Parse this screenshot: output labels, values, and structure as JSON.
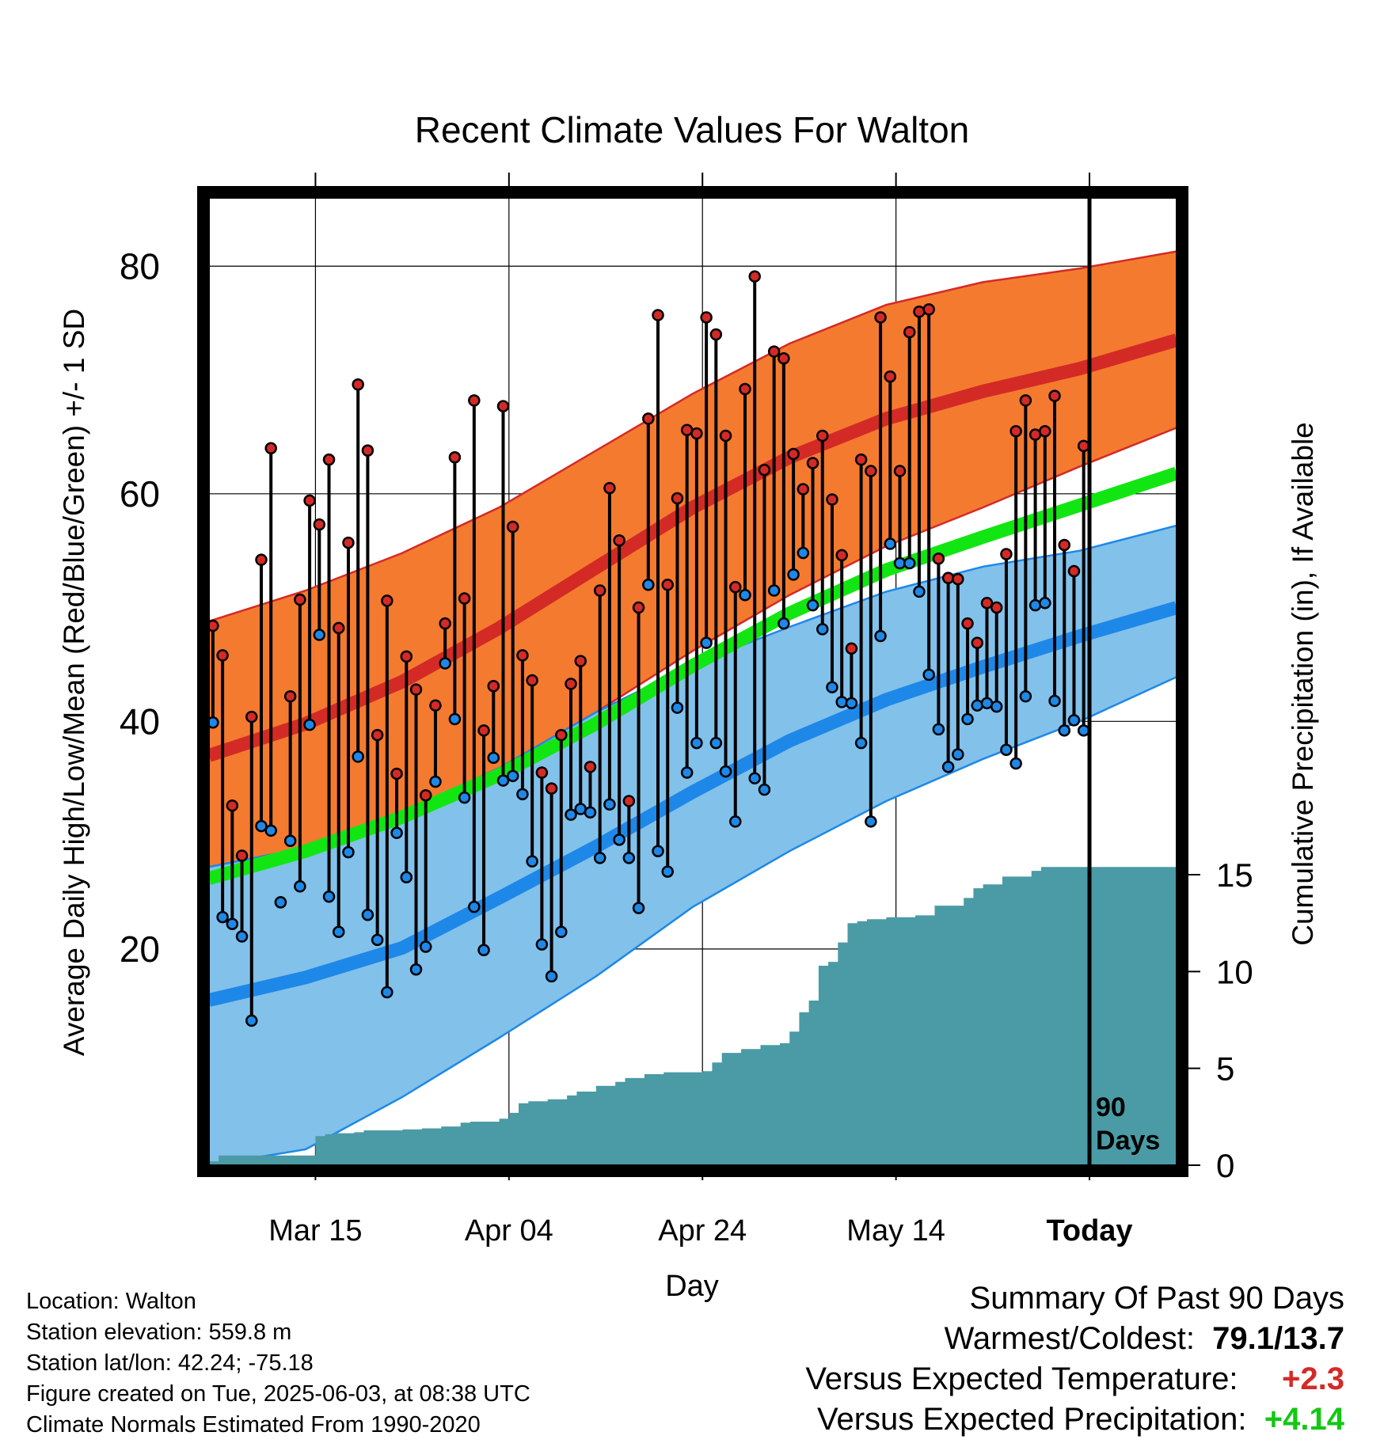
{
  "chart_data": {
    "type": "line",
    "title": "Recent Climate Values For Walton",
    "xlabel": "Day",
    "ylabel_left": "Average Daily High/Low/Mean (Red/Blue/Green) +/- 1 SD",
    "ylabel_right": "Cumulative Precipitation (in), If Available",
    "x_ticks": [
      {
        "day": 11,
        "label": "Mar 15"
      },
      {
        "day": 31,
        "label": "Apr 04"
      },
      {
        "day": 51,
        "label": "Apr 24"
      },
      {
        "day": 71,
        "label": "May 14"
      },
      {
        "day": 91,
        "label": "Today"
      }
    ],
    "xlim": [
      0,
      100
    ],
    "ylim": [
      1,
      86
    ],
    "y_ticks": [
      20,
      40,
      60,
      80
    ],
    "precip_ticks": [
      0,
      5,
      10,
      15
    ],
    "precip_lim": [
      0,
      15
    ],
    "today_day": 91,
    "today_label": [
      "90",
      "Days"
    ],
    "normals": {
      "days": [
        0,
        10,
        20,
        30,
        40,
        50,
        60,
        70,
        80,
        90,
        100
      ],
      "high_mean": [
        37,
        39.8,
        43.5,
        48.2,
        53.5,
        58.8,
        63.2,
        66.6,
        69,
        71,
        73.5
      ],
      "high_sd_upper": [
        48.8,
        51.5,
        54.8,
        58.8,
        63.8,
        68.8,
        73.2,
        76.6,
        78.6,
        79.8,
        81.3
      ],
      "high_sd_lower": [
        27.2,
        28.9,
        32,
        35.9,
        40.8,
        46.2,
        51.1,
        55.4,
        58.8,
        62.4,
        65.8
      ],
      "mean": [
        26.2,
        28.6,
        31.6,
        35.3,
        39.8,
        44.9,
        49.5,
        53.3,
        56.2,
        59,
        61.8
      ],
      "low_mean": [
        15.5,
        17.5,
        20.1,
        24.5,
        29,
        33.8,
        38.3,
        41.9,
        44.8,
        47.5,
        50
      ],
      "low_sd_upper": [
        27.2,
        28.9,
        32,
        35.9,
        40.8,
        45,
        48.3,
        51.4,
        53.6,
        55,
        57.2
      ],
      "low_sd_lower": [
        1,
        2.4,
        7,
        12.2,
        17.6,
        23.7,
        28.6,
        33,
        36.7,
        40,
        43.9
      ]
    },
    "daily_highs": [
      48.4,
      45.8,
      32.6,
      28.2,
      40.4,
      54.2,
      64.0,
      24.1,
      42.2,
      50.7,
      59.4,
      57.3,
      63.0,
      48.2,
      55.7,
      69.6,
      63.8,
      38.8,
      50.6,
      35.4,
      45.7,
      42.8,
      33.5,
      41.4,
      48.6,
      63.2,
      50.8,
      68.2,
      39.2,
      43.1,
      67.7,
      57.1,
      45.8,
      43.6,
      35.5,
      34.1,
      38.8,
      43.3,
      45.3,
      36.0,
      51.5,
      60.5,
      55.9,
      33.0,
      50.0,
      66.6,
      75.7,
      52.0,
      59.6,
      65.6,
      65.3,
      75.5,
      74.0,
      65.1,
      51.8,
      69.2,
      79.1,
      62.1,
      72.5,
      71.9,
      63.5,
      60.4,
      62.7,
      65.1,
      59.5,
      54.6,
      46.4,
      63.0,
      62.0,
      75.5,
      70.3,
      62.0,
      74.2,
      76.0,
      76.2,
      54.3,
      52.6,
      52.5,
      48.6,
      46.9,
      50.4,
      50.0,
      54.7,
      65.5,
      68.2,
      65.2,
      65.5,
      68.6,
      55.5,
      53.2,
      64.2
    ],
    "daily_lows": [
      39.9,
      22.8,
      22.2,
      21.1,
      13.7,
      30.8,
      30.4,
      24.1,
      29.5,
      25.5,
      39.7,
      47.6,
      24.6,
      21.5,
      28.5,
      36.9,
      23.0,
      20.8,
      16.2,
      30.2,
      26.3,
      18.2,
      20.2,
      34.7,
      45.1,
      40.2,
      33.3,
      23.7,
      19.9,
      36.8,
      34.8,
      35.2,
      33.6,
      27.7,
      20.4,
      17.6,
      21.5,
      31.8,
      32.3,
      32.0,
      28.0,
      32.7,
      29.6,
      28.0,
      23.6,
      52.0,
      28.6,
      26.8,
      41.2,
      35.5,
      38.1,
      46.9,
      38.1,
      35.6,
      31.2,
      51.1,
      35.0,
      34.0,
      51.5,
      48.6,
      52.9,
      54.8,
      50.2,
      48.1,
      43.0,
      41.7,
      41.6,
      38.1,
      31.2,
      47.5,
      55.6,
      53.9,
      53.9,
      51.4,
      44.1,
      39.3,
      36.0,
      37.1,
      40.2,
      41.4,
      41.6,
      41.3,
      37.5,
      36.3,
      42.2,
      50.2,
      50.4,
      41.8,
      39.2,
      40.1,
      39.2
    ],
    "precip": {
      "days": [
        0,
        1,
        10,
        11,
        12,
        13,
        15,
        16,
        20,
        22,
        24,
        26,
        27,
        30,
        31,
        32,
        33,
        35,
        37,
        38,
        40,
        42,
        43,
        45,
        47,
        51,
        52,
        53,
        55,
        57,
        59,
        60,
        61,
        62,
        63,
        64,
        65,
        66,
        67,
        68,
        70,
        73,
        75,
        76,
        78,
        79,
        80,
        82,
        85,
        86,
        91,
        100
      ],
      "values": [
        0.2,
        0.5,
        0.5,
        1.5,
        1.6,
        1.65,
        1.7,
        1.8,
        1.85,
        1.9,
        2.0,
        2.2,
        2.25,
        2.4,
        2.7,
        3.2,
        3.3,
        3.4,
        3.6,
        3.8,
        4.1,
        4.3,
        4.5,
        4.7,
        4.8,
        4.85,
        5.3,
        5.8,
        6.0,
        6.2,
        6.3,
        6.9,
        7.9,
        8.5,
        10.3,
        10.5,
        11.5,
        12.5,
        12.6,
        12.7,
        12.8,
        12.9,
        13.4,
        13.4,
        13.8,
        14.3,
        14.5,
        14.9,
        15.2,
        15.4,
        15.4,
        15.4
      ]
    },
    "grid": true
  },
  "info": {
    "location": "Location: Walton",
    "elevation": "Station elevation: 559.8 m",
    "latlon": "Station lat/lon: 42.24; -75.18",
    "created": "Figure created on Tue, 2025-06-03, at 08:38 UTC",
    "normals": "Climate Normals Estimated From 1990-2020"
  },
  "summary": {
    "heading": "Summary Of Past 90 Days",
    "warm_cold_label": "Warmest/Coldest:",
    "warm_cold_value": "79.1/13.7",
    "temp_label": "Versus Expected Temperature:",
    "temp_value": "+2.3",
    "precip_label": "Versus Expected Precipitation:",
    "precip_value": "+4.14"
  },
  "colors": {
    "high_band": "#f47a30",
    "high_line": "#d42a26",
    "mean_line": "#12e612",
    "low_band": "#82c1ea",
    "low_line": "#1e88e8",
    "precip": "#4a9ba5",
    "high_dot": "#d42a26",
    "low_dot": "#1e88e8",
    "temp_value": "#d42a26",
    "precip_value": "#12c812"
  }
}
